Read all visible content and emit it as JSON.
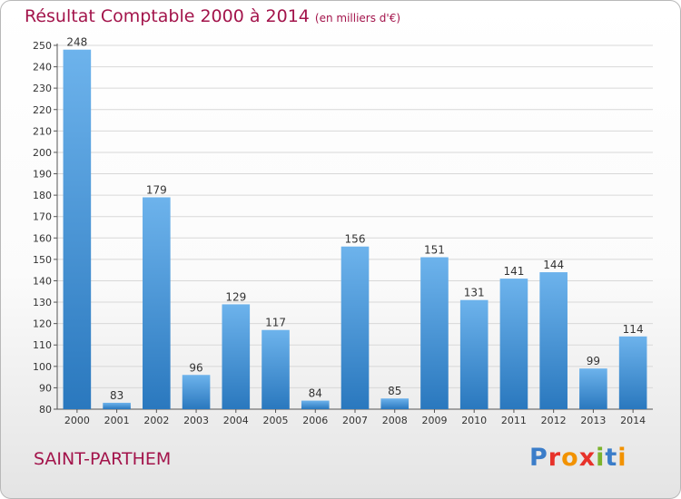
{
  "title": "Résultat Comptable 2000 à 2014",
  "subtitle": "(en milliers d'€)",
  "city": "SAINT-PARTHEM",
  "logo": {
    "text": "Proxiti",
    "colors": [
      "#3b7dc9",
      "#e7322a",
      "#f29200",
      "#e7322a",
      "#7cb32b",
      "#3b7dc9",
      "#f29200"
    ]
  },
  "colors": {
    "title": "#a3144b",
    "bar_top": "#6db3ec",
    "bar_bottom": "#2a78be",
    "grid": "#d8d8d8"
  },
  "chart_data": {
    "type": "bar",
    "categories": [
      "2000",
      "2001",
      "2002",
      "2003",
      "2004",
      "2005",
      "2006",
      "2007",
      "2008",
      "2009",
      "2010",
      "2011",
      "2012",
      "2013",
      "2014"
    ],
    "values": [
      248,
      83,
      179,
      96,
      129,
      117,
      84,
      156,
      85,
      151,
      131,
      141,
      144,
      99,
      114
    ],
    "title": "Résultat Comptable 2000 à 2014",
    "xlabel": "",
    "ylabel": "",
    "ylim": [
      80,
      250
    ],
    "yticks": [
      80,
      90,
      100,
      110,
      120,
      130,
      140,
      150,
      160,
      170,
      180,
      190,
      200,
      210,
      220,
      230,
      240,
      250
    ],
    "grid": true,
    "legend": "none"
  }
}
